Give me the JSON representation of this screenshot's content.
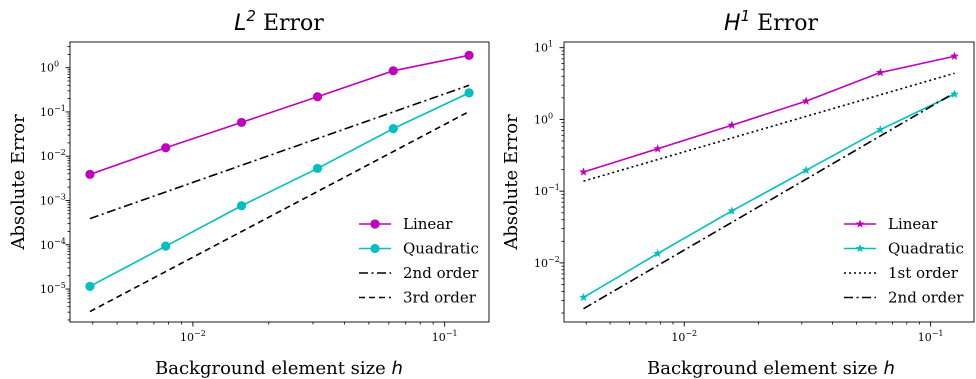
{
  "chart_data": [
    {
      "type": "line",
      "title": "L² Error",
      "title_base": "L",
      "title_sup": "2",
      "title_rest": " Error",
      "xlabel": "Background element size h",
      "xlabel_text": "Background element size ",
      "xlabel_var": "h",
      "ylabel": "Absolute Error",
      "xscale": "log",
      "yscale": "log",
      "xlim": [
        0.00325,
        0.15
      ],
      "ylim": [
        1.8e-06,
        3.8
      ],
      "xticks": [
        {
          "value": 0.01,
          "label": "10⁻²",
          "base": "10",
          "exp": "−2"
        },
        {
          "value": 0.1,
          "label": "10⁻¹",
          "base": "10",
          "exp": "−1"
        }
      ],
      "yticks": [
        {
          "value": 1e-05,
          "label": "10⁻⁵",
          "base": "10",
          "exp": "−5"
        },
        {
          "value": 0.0001,
          "label": "10⁻⁴",
          "base": "10",
          "exp": "−4"
        },
        {
          "value": 0.001,
          "label": "10⁻³",
          "base": "10",
          "exp": "−3"
        },
        {
          "value": 0.01,
          "label": "10⁻²",
          "base": "10",
          "exp": "−2"
        },
        {
          "value": 0.1,
          "label": "10⁻¹",
          "base": "10",
          "exp": "−1"
        },
        {
          "value": 1,
          "label": "10⁰",
          "base": "10",
          "exp": "0"
        }
      ],
      "grid": false,
      "legend_position": "lower-right",
      "series": [
        {
          "name": "Linear",
          "color": "#bf00bf",
          "marker": "circle",
          "dash": "solid",
          "x": [
            0.0039,
            0.0078,
            0.0156,
            0.03125,
            0.0625,
            0.125
          ],
          "y": [
            0.0039,
            0.0155,
            0.058,
            0.22,
            0.85,
            1.9
          ]
        },
        {
          "name": "Quadratic",
          "color": "#00bfbf",
          "marker": "circle",
          "dash": "solid",
          "x": [
            0.0039,
            0.0078,
            0.0156,
            0.03125,
            0.0625,
            0.125
          ],
          "y": [
            1.15e-05,
            9.3e-05,
            0.00076,
            0.0053,
            0.042,
            0.27
          ]
        },
        {
          "name": "2nd order",
          "color": "#000000",
          "marker": "none",
          "dash": "dashdot",
          "x": [
            0.0039,
            0.125
          ],
          "y": [
            0.00039,
            0.4
          ]
        },
        {
          "name": "3rd order",
          "color": "#000000",
          "marker": "none",
          "dash": "dashed",
          "x": [
            0.0039,
            0.125
          ],
          "y": [
            3.1e-06,
            0.102
          ]
        }
      ]
    },
    {
      "type": "line",
      "title": "H¹ Error",
      "title_base": "H",
      "title_sup": "1",
      "title_rest": " Error",
      "xlabel": "Background element size h",
      "xlabel_text": "Background element size ",
      "xlabel_var": "h",
      "ylabel": "Absolute Error",
      "xscale": "log",
      "yscale": "log",
      "xlim": [
        0.00325,
        0.15
      ],
      "ylim": [
        0.0015,
        12
      ],
      "xticks": [
        {
          "value": 0.01,
          "label": "10⁻²",
          "base": "10",
          "exp": "−2"
        },
        {
          "value": 0.1,
          "label": "10⁻¹",
          "base": "10",
          "exp": "−1"
        }
      ],
      "yticks": [
        {
          "value": 0.01,
          "label": "10⁻²",
          "base": "10",
          "exp": "−2"
        },
        {
          "value": 0.1,
          "label": "10⁻¹",
          "base": "10",
          "exp": "−1"
        },
        {
          "value": 1,
          "label": "10⁰",
          "base": "10",
          "exp": "0"
        },
        {
          "value": 10,
          "label": "10¹",
          "base": "10",
          "exp": "1"
        }
      ],
      "grid": false,
      "legend_position": "lower-right",
      "series": [
        {
          "name": "Linear",
          "color": "#bf00bf",
          "marker": "star",
          "dash": "solid",
          "x": [
            0.0039,
            0.0078,
            0.0156,
            0.03125,
            0.0625,
            0.125
          ],
          "y": [
            0.185,
            0.39,
            0.83,
            1.8,
            4.5,
            7.6
          ]
        },
        {
          "name": "Quadratic",
          "color": "#00bfbf",
          "marker": "star",
          "dash": "solid",
          "x": [
            0.0039,
            0.0078,
            0.0156,
            0.03125,
            0.0625,
            0.125
          ],
          "y": [
            0.0033,
            0.0135,
            0.053,
            0.195,
            0.72,
            2.25
          ]
        },
        {
          "name": "1st order",
          "color": "#000000",
          "marker": "none",
          "dash": "dotted",
          "x": [
            0.0039,
            0.125
          ],
          "y": [
            0.138,
            4.4
          ]
        },
        {
          "name": "2nd order",
          "color": "#000000",
          "marker": "none",
          "dash": "dashdot",
          "x": [
            0.0039,
            0.125
          ],
          "y": [
            0.0023,
            2.35
          ]
        }
      ]
    }
  ]
}
